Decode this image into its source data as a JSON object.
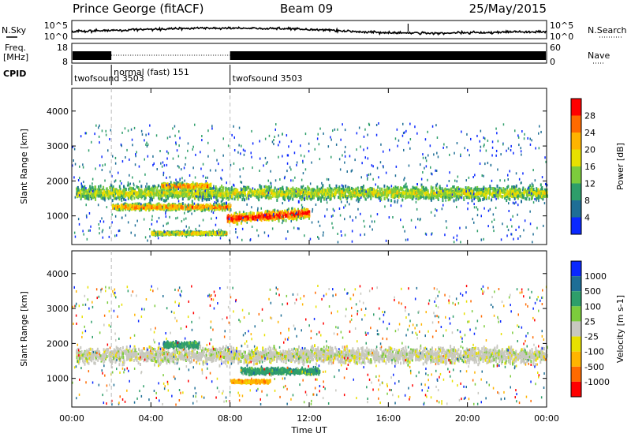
{
  "header": {
    "station": "Prince George (fitACF)",
    "beam": "Beam 09",
    "date": "25/May/2015"
  },
  "sky_panel": {
    "left_label": "N.Sky",
    "right_label": "N.Search",
    "ticks_left": [
      "10^5",
      "10^0"
    ],
    "ticks_right": [
      "10^5",
      "10^0"
    ]
  },
  "freq_panel": {
    "left_label_line1": "Freq.",
    "left_label_line2": "[MHz]",
    "right_label": "Nave",
    "ticks_left": [
      "18",
      "8"
    ],
    "ticks_right": [
      "60",
      "0"
    ]
  },
  "cpid_panel": {
    "label": "CPID",
    "modes": [
      {
        "start_hour": 0.0,
        "name": "twofsound 3503"
      },
      {
        "start_hour": 2.0,
        "name": "normal (fast) 151"
      },
      {
        "start_hour": 8.0,
        "name": "twofsound 3503"
      }
    ]
  },
  "x_axis": {
    "label": "Time UT",
    "ticks": [
      "00:00",
      "04:00",
      "08:00",
      "12:00",
      "16:00",
      "20:00",
      "00:00"
    ],
    "range_hours": [
      0,
      24
    ]
  },
  "chart_data": [
    {
      "type": "heatmap",
      "name": "power",
      "ylabel": "Slant Range [km]",
      "ylim": [
        180,
        4650
      ],
      "yticks": [
        1000,
        2000,
        3000,
        4000
      ],
      "colorbar": {
        "label": "Power [dB]",
        "ticks": [
          "28",
          "24",
          "20",
          "16",
          "12",
          "8",
          "4"
        ],
        "colors": [
          "#ff0000",
          "#ff6a00",
          "#ffb400",
          "#e8e000",
          "#7ccc3c",
          "#2e9e6a",
          "#1e6e96",
          "#0a28ff"
        ]
      },
      "echo_regions": [
        {
          "t0": 0.2,
          "t1": 24.0,
          "range_center": 1650,
          "spread": 260,
          "level": 3
        },
        {
          "t0": 2.0,
          "t1": 8.0,
          "range_center": 1250,
          "spread": 120,
          "level": 5
        },
        {
          "t0": 7.8,
          "t1": 12.0,
          "range_center": 1000,
          "spread": 200,
          "level": 7
        },
        {
          "t0": 4.5,
          "t1": 7.0,
          "range_center": 1850,
          "spread": 120,
          "level": 5
        },
        {
          "t0": 4.0,
          "t1": 7.8,
          "range_center": 500,
          "spread": 60,
          "level": 4
        }
      ]
    },
    {
      "type": "heatmap",
      "name": "velocity",
      "ylabel": "Slant Range [km]",
      "ylim": [
        180,
        4650
      ],
      "yticks": [
        1000,
        2000,
        3000,
        4000
      ],
      "colorbar": {
        "label": "Velocity [m s-1]",
        "ticks": [
          "1000",
          "500",
          "100",
          "25",
          "-25",
          "-100",
          "-500",
          "-1000"
        ],
        "colors": [
          "#0a28ff",
          "#1e6e96",
          "#2e9e6a",
          "#7ccc3c",
          "#c8c8c0",
          "#e8e000",
          "#ffb400",
          "#ff6a00",
          "#ff0000"
        ]
      },
      "echo_regions": [
        {
          "t0": 0.2,
          "t1": 24.0,
          "range_center": 1650,
          "spread": 300,
          "level": 4
        },
        {
          "t0": 8.5,
          "t1": 12.5,
          "range_center": 1200,
          "spread": 120,
          "level": 2
        },
        {
          "t0": 8.0,
          "t1": 10.0,
          "range_center": 900,
          "spread": 60,
          "level": 6
        },
        {
          "t0": 4.6,
          "t1": 6.4,
          "range_center": 1950,
          "spread": 120,
          "level": 2
        }
      ]
    }
  ]
}
